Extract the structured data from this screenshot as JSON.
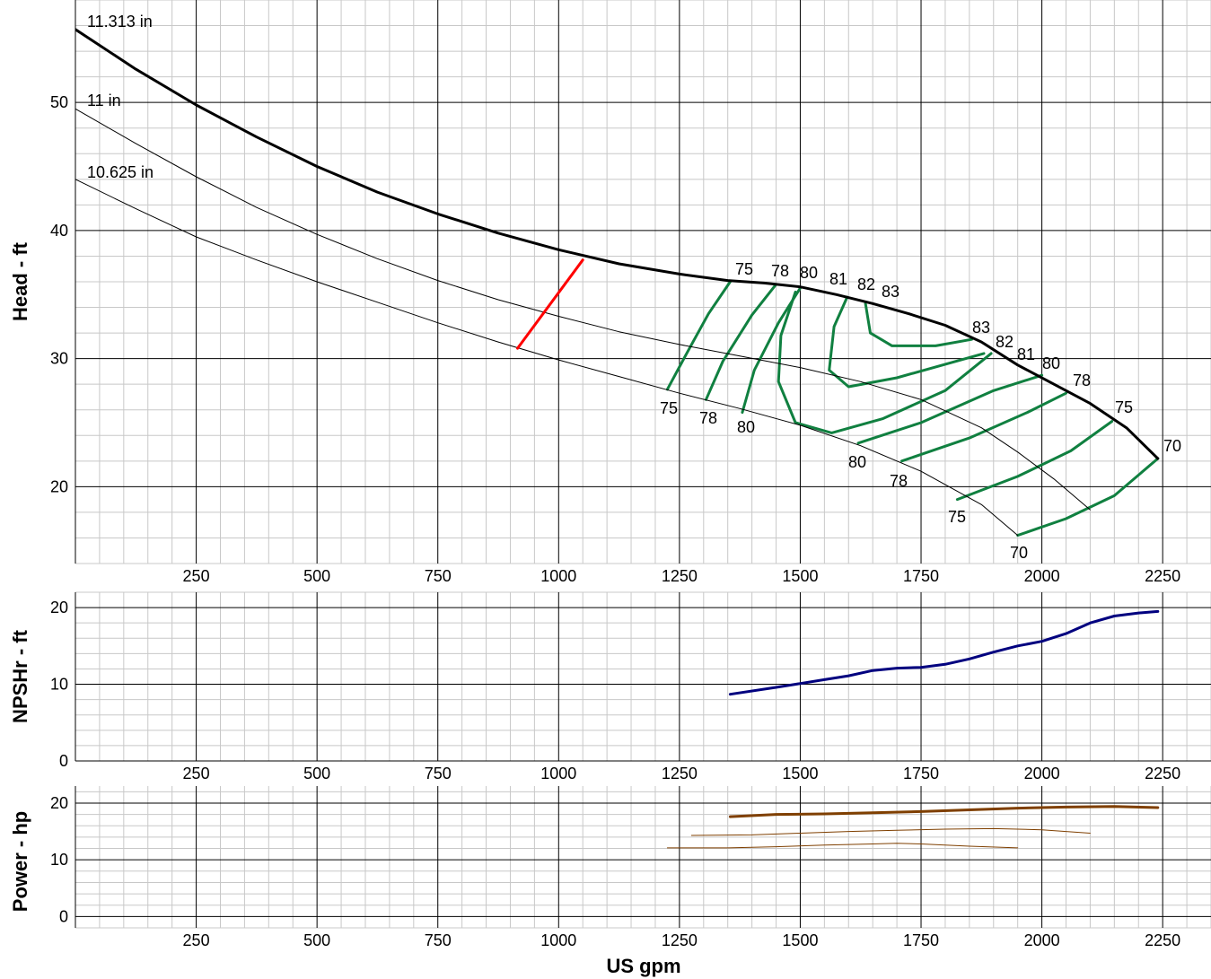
{
  "chart_data": [
    {
      "panel": "head",
      "type": "line",
      "xlabel": "US gpm",
      "ylabel": "Head - ft",
      "xlim": [
        0,
        2350
      ],
      "ylim": [
        14,
        58
      ],
      "x_ticks": [
        250,
        500,
        750,
        1000,
        1250,
        1500,
        1750,
        2000,
        2250
      ],
      "y_ticks": [
        20,
        30,
        40,
        50
      ],
      "grid": true,
      "series": [
        {
          "name": "11.313 in",
          "color": "#000000",
          "width": 3,
          "x": [
            0,
            125,
            250,
            375,
            500,
            625,
            750,
            875,
            1000,
            1125,
            1250,
            1350,
            1425,
            1500,
            1575,
            1650,
            1725,
            1800,
            1875,
            1950,
            2025,
            2100,
            2175,
            2240
          ],
          "y": [
            55.7,
            52.6,
            49.8,
            47.3,
            45.0,
            43.0,
            41.3,
            39.8,
            38.5,
            37.4,
            36.6,
            36.1,
            35.9,
            35.6,
            35.0,
            34.3,
            33.5,
            32.6,
            31.3,
            29.5,
            28.0,
            26.5,
            24.6,
            22.2
          ]
        },
        {
          "name": "11 in",
          "color": "#000000",
          "width": 1,
          "x": [
            0,
            125,
            250,
            375,
            500,
            625,
            750,
            875,
            1000,
            1125,
            1250,
            1375,
            1500,
            1625,
            1750,
            1875,
            1950,
            2025,
            2100
          ],
          "y": [
            49.5,
            46.8,
            44.2,
            41.8,
            39.7,
            37.8,
            36.1,
            34.6,
            33.3,
            32.1,
            31.1,
            30.2,
            29.3,
            28.2,
            26.8,
            24.6,
            22.7,
            20.6,
            18.2
          ]
        },
        {
          "name": "10.625 in",
          "color": "#000000",
          "width": 1,
          "x": [
            0,
            125,
            250,
            375,
            500,
            625,
            750,
            875,
            1000,
            1125,
            1250,
            1375,
            1500,
            1625,
            1750,
            1875,
            1950
          ],
          "y": [
            44.0,
            41.7,
            39.5,
            37.7,
            36.0,
            34.4,
            32.8,
            31.3,
            29.9,
            28.6,
            27.3,
            26.1,
            24.8,
            23.2,
            21.2,
            18.6,
            16.2
          ]
        },
        {
          "name": "",
          "color": "#ff0000",
          "width": 3,
          "x": [
            915,
            1050
          ],
          "y": [
            30.8,
            37.7
          ]
        }
      ],
      "efficiency_curves": [
        {
          "label": "75",
          "x": [
            1225,
            1265,
            1310,
            1355
          ],
          "y": [
            27.6,
            30.4,
            33.5,
            36.0
          ]
        },
        {
          "label": "78",
          "x": [
            1305,
            1340,
            1400,
            1450
          ],
          "y": [
            26.8,
            29.8,
            33.4,
            35.8
          ]
        },
        {
          "label": "80",
          "x": [
            1380,
            1405,
            1455,
            1500
          ],
          "y": [
            25.8,
            29.1,
            32.8,
            35.5
          ]
        },
        {
          "label": "81",
          "x": [
            1490,
            1460,
            1455,
            1490,
            1565,
            1670,
            1800,
            1895
          ],
          "y": [
            35.2,
            31.8,
            28.2,
            25.0,
            24.2,
            25.3,
            27.5,
            30.4
          ]
        },
        {
          "label": "82",
          "x": [
            1597,
            1570,
            1560,
            1600,
            1700,
            1880
          ],
          "y": [
            34.8,
            32.5,
            29.1,
            27.8,
            28.5,
            30.4
          ]
        },
        {
          "label": "83",
          "x": [
            1635,
            1645,
            1690,
            1780,
            1855
          ],
          "y": [
            34.3,
            32.0,
            31.0,
            31.0,
            31.5
          ]
        },
        {
          "label": "80",
          "x": [
            1620,
            1750,
            1900,
            2000
          ],
          "y": [
            23.4,
            25.0,
            27.5,
            28.7
          ]
        },
        {
          "label": "78",
          "x": [
            1710,
            1850,
            1970,
            2050
          ],
          "y": [
            22.0,
            23.8,
            25.8,
            27.3
          ]
        },
        {
          "label": "75",
          "x": [
            1825,
            1950,
            2060,
            2145
          ],
          "y": [
            19.0,
            20.8,
            22.8,
            25.1
          ]
        },
        {
          "label": "70",
          "x": [
            1950,
            2050,
            2150,
            2240
          ],
          "y": [
            16.2,
            17.5,
            19.3,
            22.2
          ]
        }
      ],
      "curve_labels": [
        "11.313 in",
        "11 in",
        "10.625 in"
      ],
      "eff_top_labels": [
        "75",
        "78",
        "80",
        "81",
        "82",
        "83"
      ],
      "eff_left_labels": [
        "75",
        "78",
        "80"
      ],
      "eff_right_labels": [
        "83",
        "82",
        "81",
        "80",
        "78",
        "75",
        "70"
      ],
      "eff_bottom_labels": [
        "80",
        "78",
        "75",
        "70"
      ]
    },
    {
      "panel": "npshr",
      "type": "line",
      "ylabel": "NPSHr - ft",
      "xlim": [
        0,
        2350
      ],
      "ylim": [
        0,
        22
      ],
      "x_ticks": [
        250,
        500,
        750,
        1000,
        1250,
        1500,
        1750,
        2000,
        2250
      ],
      "y_ticks": [
        0,
        10,
        20
      ],
      "grid": true,
      "series": [
        {
          "name": "",
          "color": "#00007f",
          "width": 3,
          "x": [
            1355,
            1450,
            1550,
            1600,
            1650,
            1700,
            1750,
            1800,
            1850,
            1900,
            1950,
            2000,
            2050,
            2100,
            2150,
            2200,
            2240
          ],
          "y": [
            8.7,
            9.6,
            10.6,
            11.1,
            11.8,
            12.1,
            12.2,
            12.6,
            13.3,
            14.2,
            15.0,
            15.6,
            16.6,
            18.0,
            18.9,
            19.3,
            19.5
          ]
        }
      ]
    },
    {
      "panel": "power",
      "type": "line",
      "ylabel": "Power - hp",
      "xlim": [
        0,
        2350
      ],
      "ylim": [
        -2,
        23
      ],
      "x_ticks": [
        250,
        500,
        750,
        1000,
        1250,
        1500,
        1750,
        2000,
        2250
      ],
      "y_ticks": [
        0,
        10,
        20
      ],
      "grid": true,
      "series": [
        {
          "name": "11.313 in",
          "color": "#7f3f00",
          "width": 3,
          "x": [
            1355,
            1450,
            1550,
            1650,
            1750,
            1850,
            1950,
            2050,
            2150,
            2240
          ],
          "y": [
            17.6,
            18.0,
            18.1,
            18.3,
            18.5,
            18.8,
            19.1,
            19.3,
            19.4,
            19.2
          ]
        },
        {
          "name": "11 in",
          "color": "#7f3f00",
          "width": 1,
          "x": [
            1275,
            1400,
            1500,
            1600,
            1700,
            1800,
            1900,
            2000,
            2100
          ],
          "y": [
            14.3,
            14.4,
            14.7,
            15.0,
            15.2,
            15.4,
            15.5,
            15.3,
            14.7
          ]
        },
        {
          "name": "10.625 in",
          "color": "#7f3f00",
          "width": 1,
          "x": [
            1225,
            1350,
            1450,
            1550,
            1650,
            1700,
            1750,
            1850,
            1950
          ],
          "y": [
            12.1,
            12.1,
            12.3,
            12.6,
            12.8,
            12.9,
            12.8,
            12.4,
            12.1
          ]
        }
      ]
    }
  ],
  "colors": {
    "efficiency": "#108040",
    "npshr": "#00007f",
    "power": "#7f3f00",
    "operating_limit": "#ff0000"
  }
}
